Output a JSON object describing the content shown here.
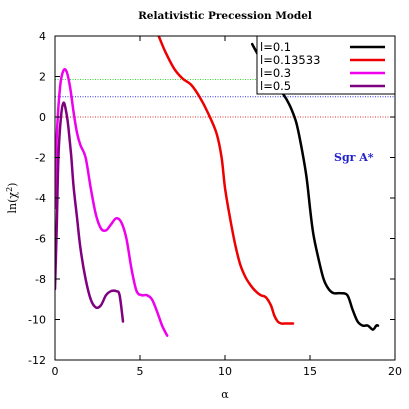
{
  "chart_data": {
    "type": "line",
    "title": "Relativistic Precession Model",
    "xlabel": "α",
    "ylabel_main": "ln(χ",
    "ylabel_sup": "2",
    "ylabel_end": ")",
    "xlim": [
      0,
      20
    ],
    "ylim": [
      -12,
      4
    ],
    "xticks": [
      0,
      5,
      10,
      15,
      20
    ],
    "yticks": [
      -12,
      -10,
      -8,
      -6,
      -4,
      -2,
      0,
      2,
      4
    ],
    "grid": false,
    "legend_position": "top-right",
    "annotation": {
      "text": "Sgr A*",
      "color": "#2222cc"
    },
    "reference_lines": [
      {
        "y": 1.85,
        "color": "#33dd33",
        "style": "dotted"
      },
      {
        "y": 1.0,
        "color": "#3333dd",
        "style": "dotted"
      },
      {
        "y": 0.0,
        "color": "#dd3333",
        "style": "dotted"
      }
    ],
    "series": [
      {
        "name": "l=0.1",
        "color": "#000000",
        "x": [
          11.6,
          12.0,
          12.5,
          13.0,
          13.3,
          13.6,
          13.9,
          14.2,
          14.5,
          14.8,
          15.0,
          15.2,
          15.5,
          15.8,
          16.1,
          16.4,
          16.8,
          17.2,
          17.5,
          17.8,
          18.1,
          18.4,
          18.7,
          18.9,
          19.0
        ],
        "y": [
          3.6,
          3.0,
          2.4,
          1.8,
          1.3,
          0.9,
          0.4,
          -0.3,
          -1.5,
          -3.0,
          -4.5,
          -5.8,
          -7.0,
          -8.0,
          -8.5,
          -8.7,
          -8.7,
          -8.8,
          -9.5,
          -10.1,
          -10.3,
          -10.3,
          -10.5,
          -10.3,
          -10.3
        ]
      },
      {
        "name": "l=0.13533",
        "color": "#ee0000",
        "x": [
          6.1,
          6.5,
          7.0,
          7.5,
          8.0,
          8.5,
          9.0,
          9.5,
          9.8,
          10.0,
          10.3,
          10.6,
          10.9,
          11.2,
          11.5,
          11.8,
          12.1,
          12.4,
          12.7,
          12.9,
          13.1,
          13.3,
          13.5,
          14.0
        ],
        "y": [
          4.0,
          3.2,
          2.4,
          1.9,
          1.6,
          1.0,
          0.2,
          -0.8,
          -2.0,
          -3.5,
          -5.0,
          -6.3,
          -7.3,
          -7.9,
          -8.3,
          -8.6,
          -8.8,
          -8.9,
          -9.3,
          -9.8,
          -10.1,
          -10.2,
          -10.2,
          -10.2
        ]
      },
      {
        "name": "l=0.3",
        "color": "#ee00ee",
        "x": [
          0.0,
          0.1,
          0.3,
          0.5,
          0.7,
          0.9,
          1.1,
          1.3,
          1.5,
          1.8,
          2.1,
          2.4,
          2.7,
          3.0,
          3.3,
          3.6,
          3.9,
          4.2,
          4.5,
          4.8,
          5.1,
          5.4,
          5.7,
          6.0,
          6.3,
          6.6
        ],
        "y": [
          -4.5,
          -1.0,
          1.5,
          2.3,
          2.2,
          1.4,
          0.2,
          -0.8,
          -1.4,
          -2.0,
          -3.5,
          -4.8,
          -5.5,
          -5.6,
          -5.3,
          -5.0,
          -5.2,
          -6.0,
          -7.5,
          -8.6,
          -8.8,
          -8.8,
          -9.0,
          -9.6,
          -10.3,
          -10.8
        ]
      },
      {
        "name": "l=0.5",
        "color": "#800080",
        "x": [
          0.0,
          0.1,
          0.2,
          0.35,
          0.5,
          0.65,
          0.8,
          0.95,
          1.1,
          1.3,
          1.5,
          1.8,
          2.1,
          2.4,
          2.7,
          3.0,
          3.3,
          3.6,
          3.8,
          4.0
        ],
        "y": [
          -8.5,
          -5.5,
          -2.0,
          0.0,
          0.7,
          0.3,
          -0.6,
          -1.9,
          -3.5,
          -5.0,
          -6.5,
          -8.0,
          -9.0,
          -9.4,
          -9.3,
          -8.8,
          -8.6,
          -8.6,
          -8.8,
          -10.1
        ]
      }
    ]
  }
}
